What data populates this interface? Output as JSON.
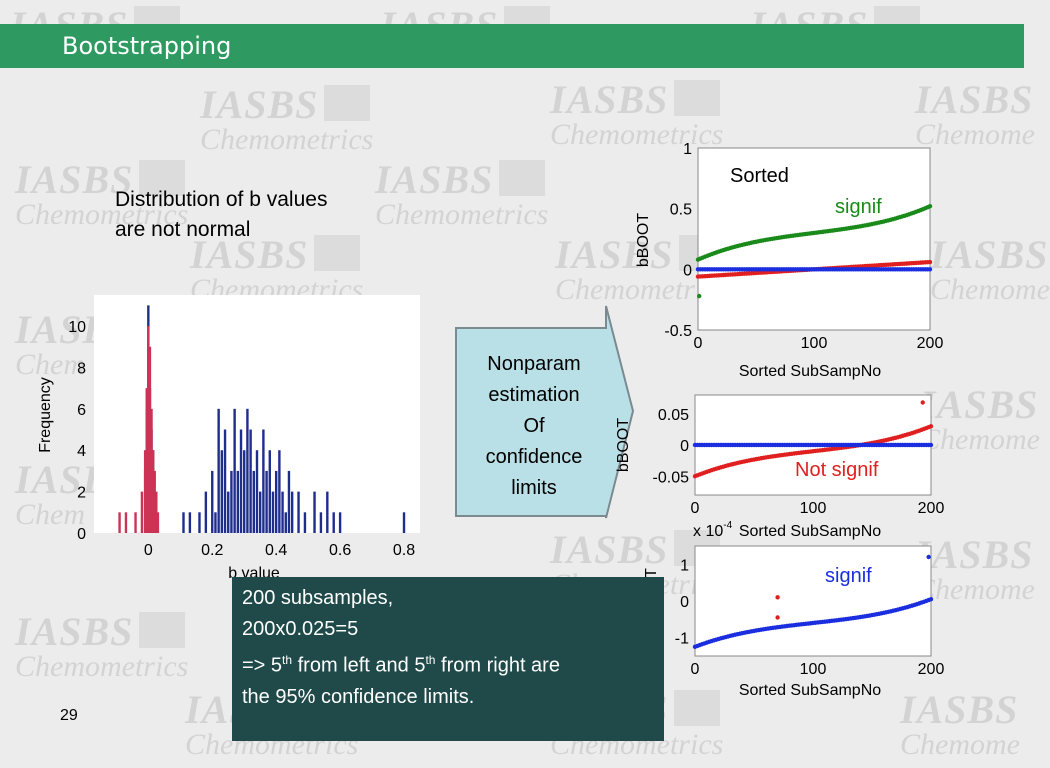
{
  "slide": {
    "title": "Bootstrapping",
    "page_number": "29",
    "description_lines": [
      "Distribution of b values",
      "are not normal"
    ],
    "watermark": {
      "line1": "IASBS",
      "line2": "Chemometrics"
    },
    "header_color": "#2e9a62"
  },
  "arrow": {
    "lines": [
      "Nonparam",
      "estimation",
      "Of",
      "confidence",
      "limits"
    ],
    "fill": "#b9e0e6"
  },
  "callout": {
    "line1": "200 subsamples,",
    "line2": "200x0.025=5",
    "line3_a": "=> 5",
    "sup1": "th",
    "line3_b": " from left and 5",
    "sup2": "th",
    "line3_c": " from right are",
    "line4": "the 95% confidence limits."
  },
  "chart_data": [
    {
      "type": "bar",
      "chart_id": "histogram",
      "xlabel": "b value",
      "ylabel": "Frequency",
      "xlim": [
        -0.17,
        0.85
      ],
      "ylim": [
        0,
        11.5
      ],
      "xticks": [
        "0",
        "0.2",
        "0.4",
        "0.6",
        "0.8"
      ],
      "yticks": [
        "0",
        "2",
        "4",
        "6",
        "8",
        "10"
      ],
      "series": [
        {
          "color": "#1f2d8c",
          "x": [
            -0.01,
            -0.005,
            0.0,
            0.005,
            0.01,
            0.015,
            0.02,
            0.11,
            0.13,
            0.16,
            0.18,
            0.2,
            0.21,
            0.22,
            0.23,
            0.24,
            0.25,
            0.26,
            0.27,
            0.28,
            0.29,
            0.3,
            0.31,
            0.32,
            0.33,
            0.34,
            0.35,
            0.36,
            0.37,
            0.38,
            0.39,
            0.4,
            0.41,
            0.42,
            0.43,
            0.44,
            0.45,
            0.47,
            0.49,
            0.52,
            0.54,
            0.56,
            0.58,
            0.6,
            0.8
          ],
          "y": [
            3,
            6,
            11,
            7,
            5,
            4,
            2,
            1,
            1,
            1,
            2,
            3,
            1,
            6,
            4,
            5,
            2,
            3,
            6,
            3,
            5,
            4,
            6,
            5,
            3,
            4,
            2,
            5,
            3,
            4,
            2,
            3,
            4,
            2,
            1,
            3,
            2,
            2,
            1,
            2,
            1,
            2,
            1,
            1,
            1
          ]
        },
        {
          "color": "#cc3355",
          "x": [
            -0.09,
            -0.07,
            -0.04,
            -0.02,
            -0.01,
            -0.005,
            0.0,
            0.005,
            0.01,
            0.015,
            0.02,
            0.025,
            0.03
          ],
          "y": [
            1,
            1,
            1,
            2,
            4,
            7,
            10,
            9,
            6,
            4,
            3,
            2,
            1
          ]
        }
      ]
    },
    {
      "type": "scatter",
      "chart_id": "sorted-top",
      "title": "Sorted",
      "annotation": "signif",
      "xlabel": "Sorted SubSampNo",
      "ylabel": "bBOOT",
      "xlim": [
        0,
        200
      ],
      "ylim": [
        -0.5,
        1
      ],
      "xticks": [
        "0",
        "100",
        "200"
      ],
      "yticks": [
        "-0.5",
        "0",
        "0.5",
        "1"
      ],
      "series": [
        {
          "color": "#1a8a1a",
          "start": 0.08,
          "end": 0.52,
          "shape": "s-curve",
          "outliers": [
            [
              1,
              -0.22
            ]
          ]
        },
        {
          "color": "#e02020",
          "start": -0.06,
          "end": 0.06,
          "shape": "flat"
        },
        {
          "color": "#1a2ee0",
          "start": 0.0,
          "end": 0.0,
          "shape": "flat"
        }
      ]
    },
    {
      "type": "scatter",
      "chart_id": "sorted-middle",
      "annotation": "Not signif",
      "xlabel": "Sorted SubSampNo",
      "ylabel": "bBOOT",
      "exponent": "x 10",
      "exponent_power": "-4",
      "xlim": [
        0,
        200
      ],
      "ylim": [
        -0.08,
        0.08
      ],
      "xticks": [
        "0",
        "100",
        "200"
      ],
      "yticks": [
        "-0.05",
        "0",
        "0.05"
      ],
      "series": [
        {
          "color": "#e02020",
          "start": -0.05,
          "end": 0.03,
          "shape": "s-curve",
          "outliers": [
            [
              193,
              0.068
            ]
          ]
        },
        {
          "color": "#1a2ee0",
          "start": 0.0,
          "end": 0.0,
          "shape": "flat"
        }
      ]
    },
    {
      "type": "scatter",
      "chart_id": "sorted-bottom",
      "annotation": "signif",
      "xlabel": "Sorted SubSampNo",
      "ylabel": "T",
      "xlim": [
        0,
        200
      ],
      "ylim": [
        -1.5,
        1.5
      ],
      "xticks": [
        "0",
        "100",
        "200"
      ],
      "yticks": [
        "-1",
        "0",
        "1"
      ],
      "series": [
        {
          "color": "#1a2ee0",
          "start": -1.25,
          "end": 0.05,
          "shape": "s-curve",
          "outliers": [
            [
              198,
              1.2
            ]
          ]
        },
        {
          "color": "#e02020",
          "points_only": [
            [
              70,
              0.1
            ],
            [
              70,
              -0.45
            ]
          ]
        }
      ]
    }
  ]
}
